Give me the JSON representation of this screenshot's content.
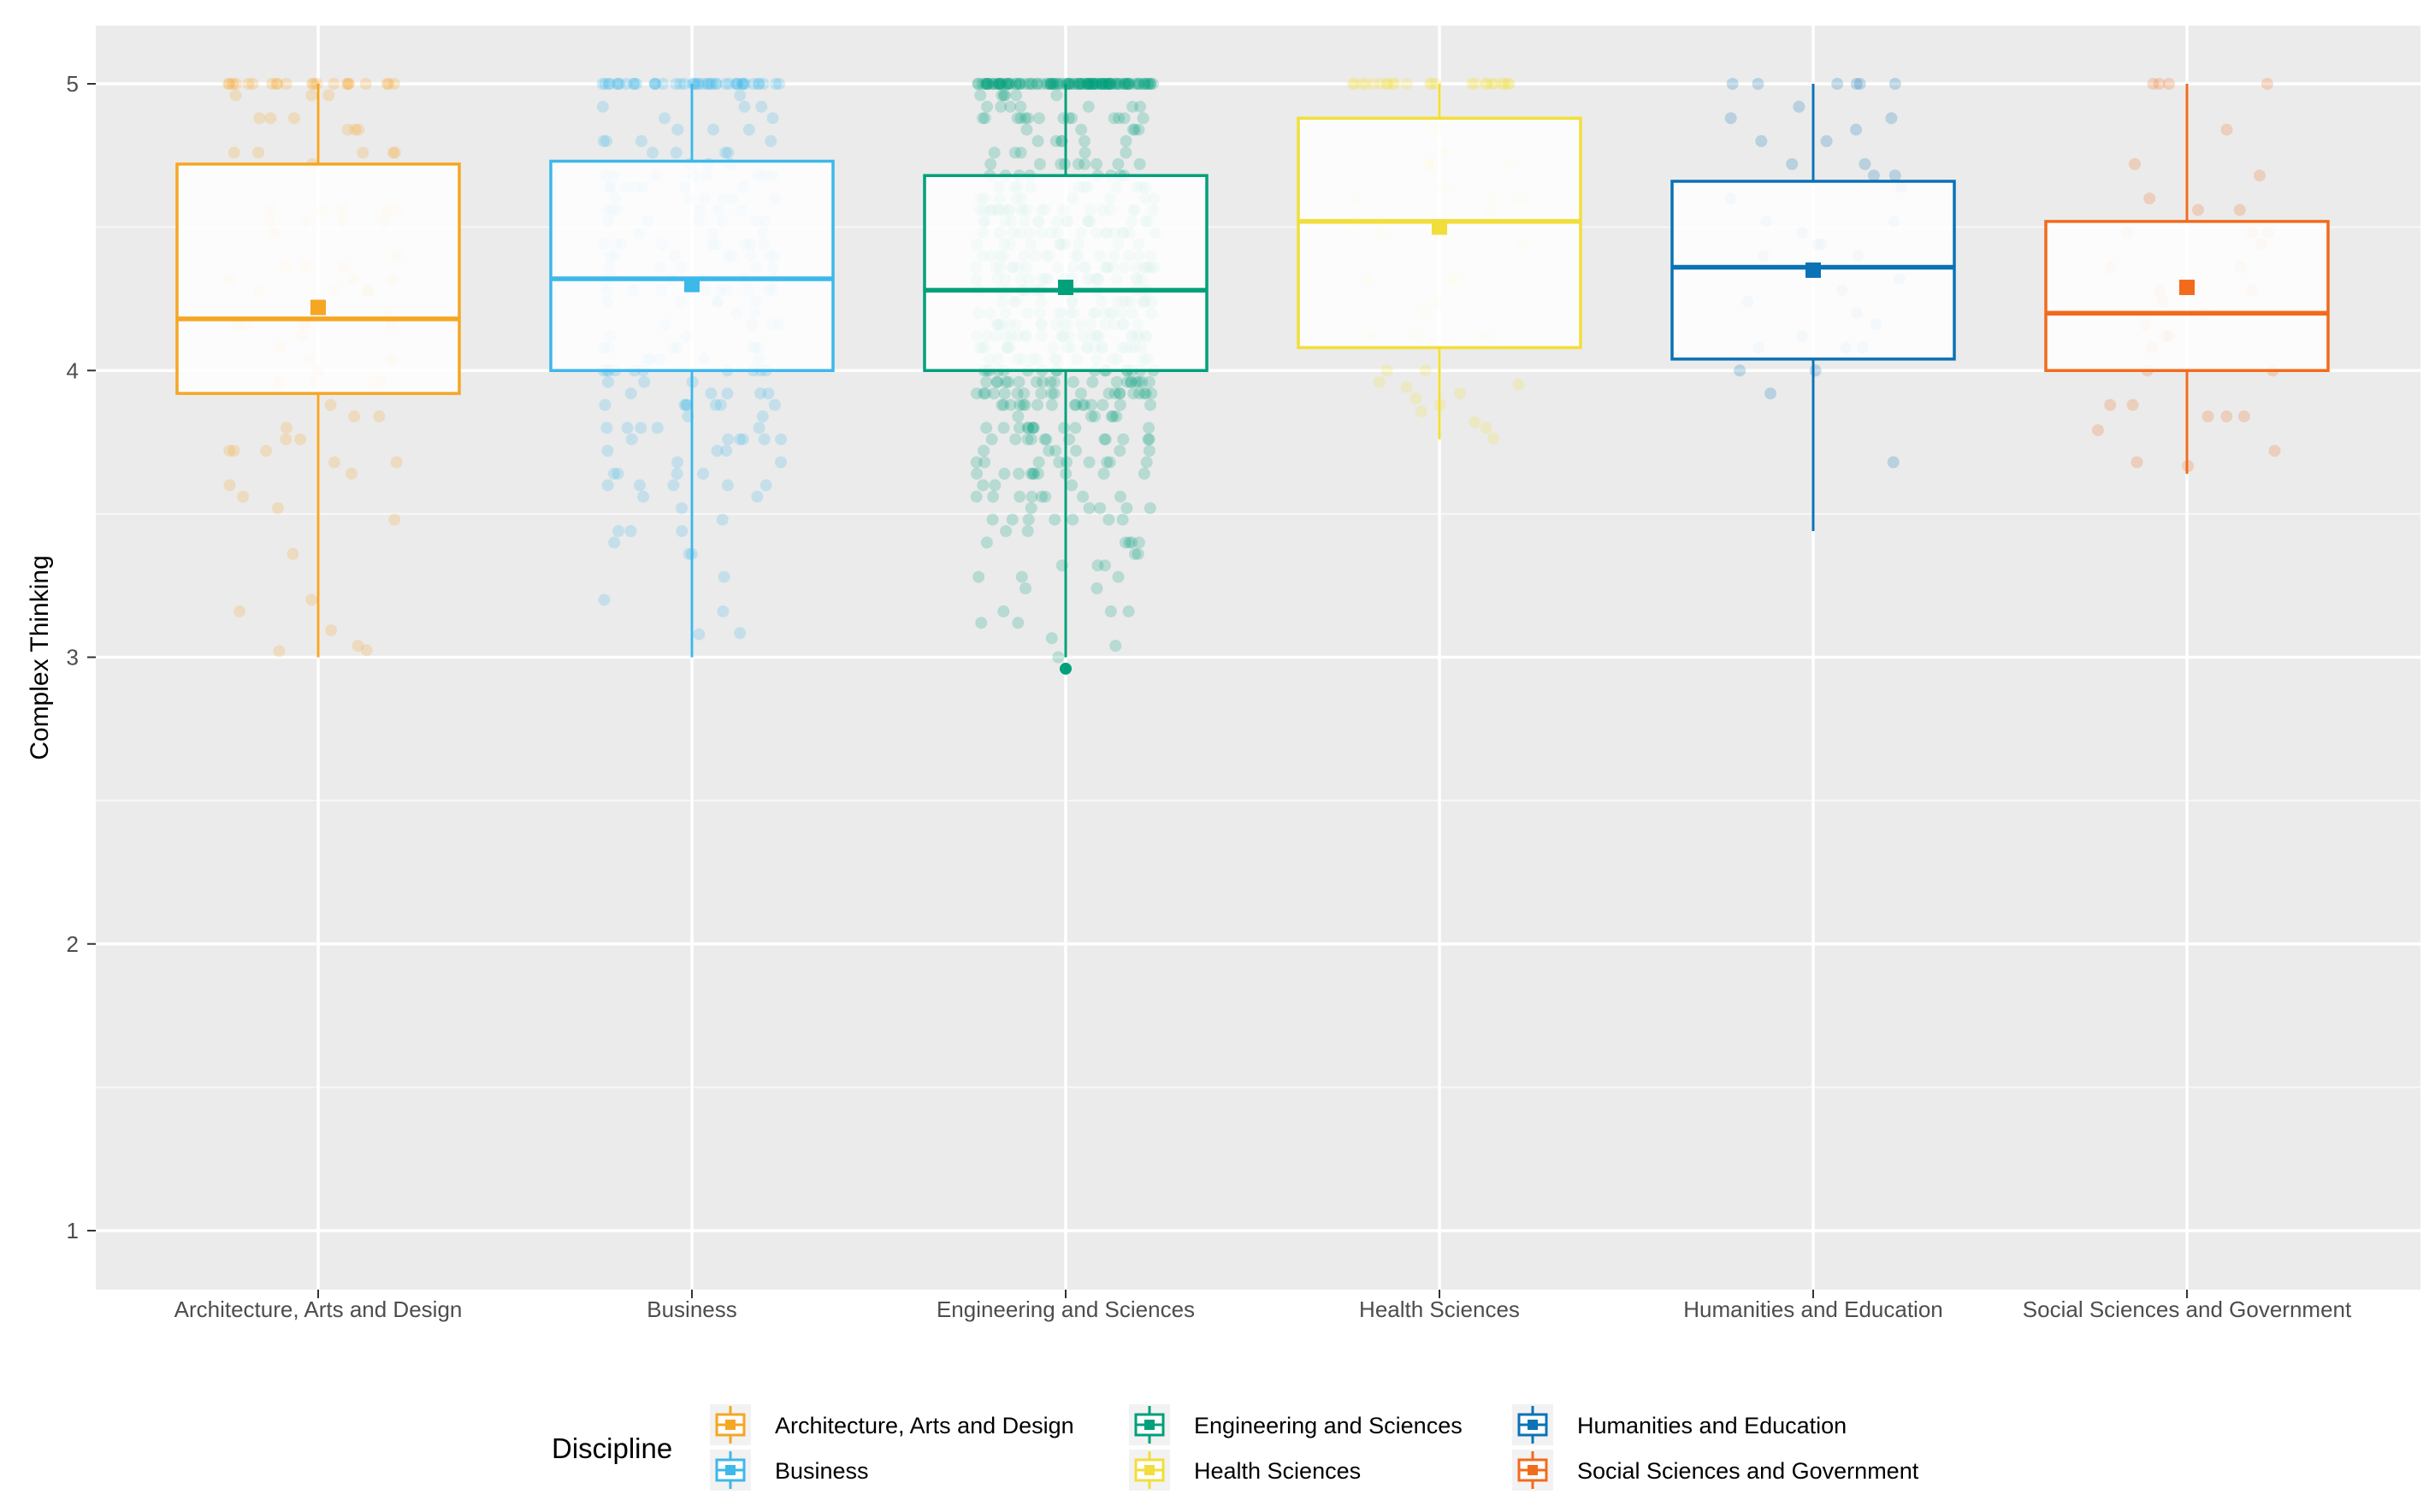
{
  "chart_data": {
    "type": "boxplot",
    "title": "",
    "xlabel": "",
    "ylabel": "Complex Thinking",
    "ylim": [
      0.8,
      5.2
    ],
    "yticks": [
      1,
      2,
      3,
      4,
      5
    ],
    "grid": true,
    "legend_title": "Discipline",
    "legend_position": "bottom",
    "categories": [
      "Architecture, Arts and Design",
      "Business",
      "Engineering and Sciences",
      "Health Sciences",
      "Humanities and Education",
      "Social Sciences and Government"
    ],
    "series": [
      {
        "name": "Architecture, Arts and Design",
        "color": "#F5A623",
        "whisker_low": 3.0,
        "q1": 3.92,
        "median": 4.18,
        "q3": 4.72,
        "whisker_high": 5.0,
        "mean": 4.22,
        "outliers": [],
        "n_points": 95
      },
      {
        "name": "Business",
        "color": "#3DB8EA",
        "whisker_low": 3.0,
        "q1": 4.0,
        "median": 4.32,
        "q3": 4.73,
        "whisker_high": 5.0,
        "mean": 4.3,
        "outliers": [],
        "n_points": 230
      },
      {
        "name": "Engineering and Sciences",
        "color": "#00A07A",
        "whisker_low": 3.0,
        "q1": 4.0,
        "median": 4.28,
        "q3": 4.68,
        "whisker_high": 5.0,
        "mean": 4.29,
        "outliers": [
          2.96
        ],
        "n_points": 620
      },
      {
        "name": "Health Sciences",
        "color": "#F2DE3A",
        "whisker_low": 3.76,
        "q1": 4.08,
        "median": 4.52,
        "q3": 4.88,
        "whisker_high": 5.0,
        "mean": 4.5,
        "outliers": [],
        "n_points": 60
      },
      {
        "name": "Humanities and Education",
        "color": "#0A72B5",
        "whisker_low": 3.44,
        "q1": 4.04,
        "median": 4.36,
        "q3": 4.66,
        "whisker_high": 5.0,
        "mean": 4.35,
        "outliers": [],
        "n_points": 38
      },
      {
        "name": "Social Sciences and Government",
        "color": "#F26B1D",
        "whisker_low": 3.64,
        "q1": 4.0,
        "median": 4.2,
        "q3": 4.52,
        "whisker_high": 5.0,
        "mean": 4.29,
        "outliers": [],
        "n_points": 36
      }
    ]
  }
}
